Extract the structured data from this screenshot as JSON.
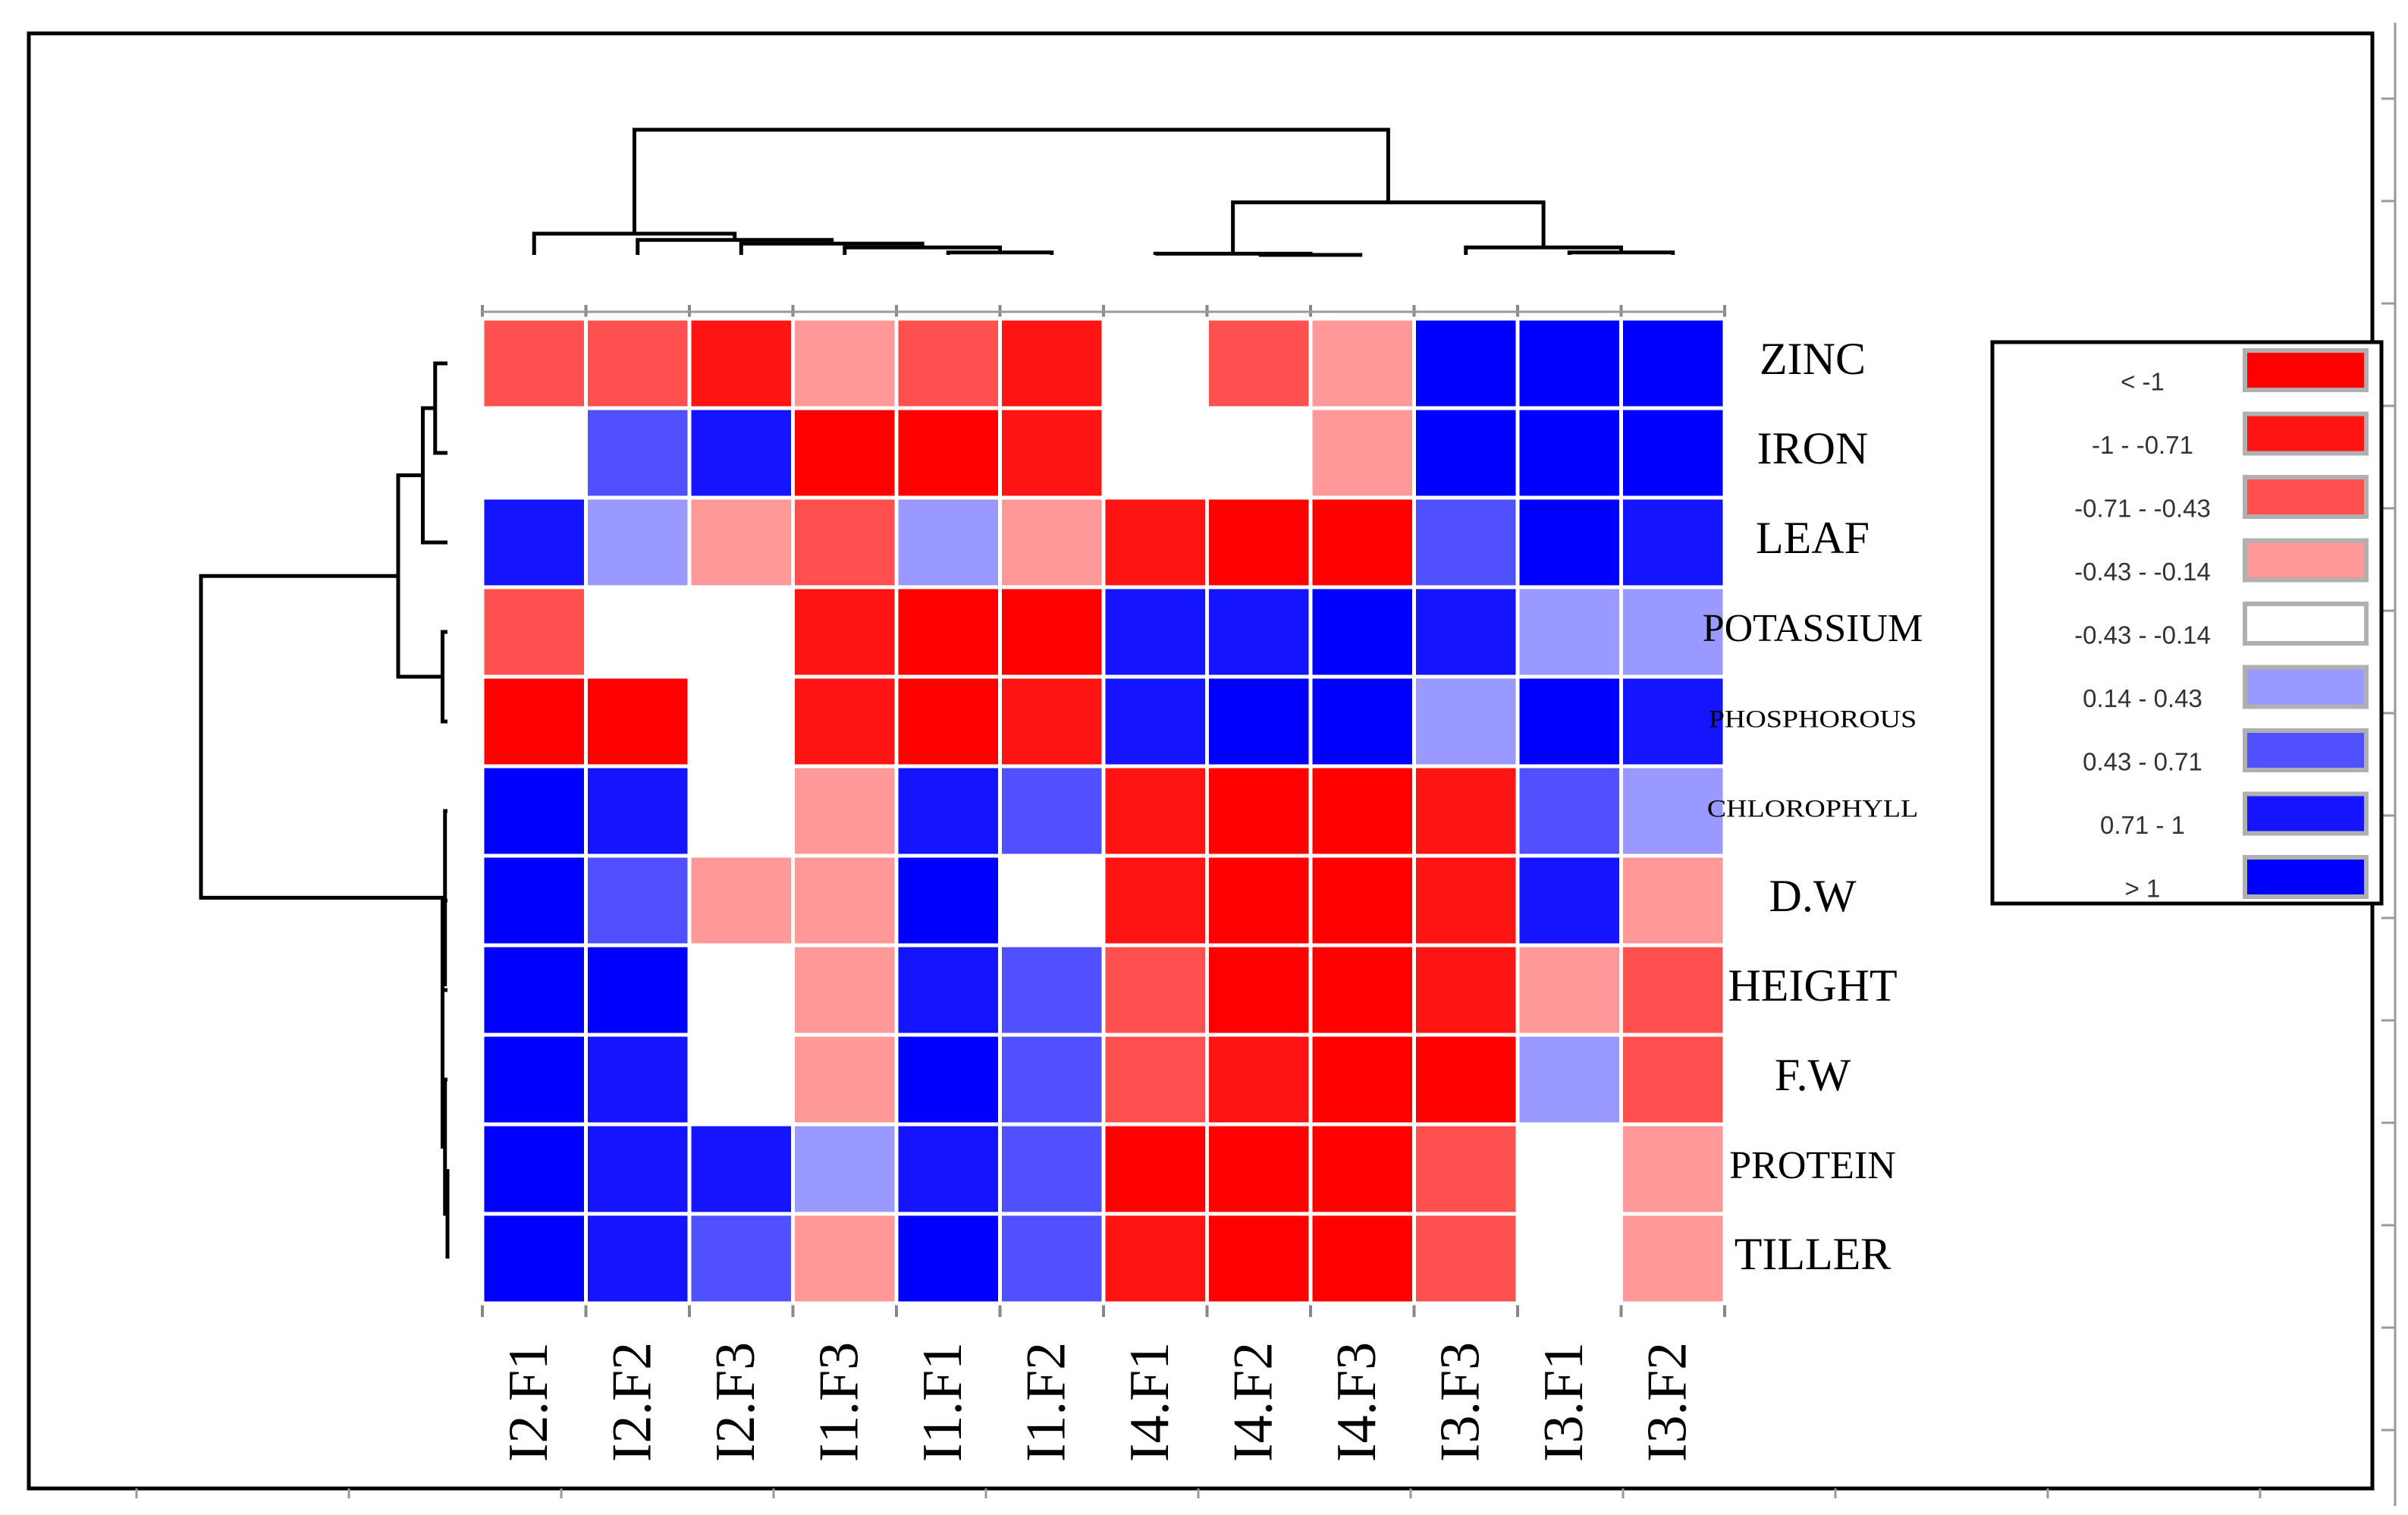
{
  "chart_data": {
    "type": "heatmap",
    "title": "",
    "rows": [
      "ZINC",
      "IRON",
      "LEAF",
      "POTASSIUM",
      "PHOSPHOROUS",
      "CHLOROPHYLL",
      "D.W",
      "HEIGHT",
      "F.W",
      "PROTEIN",
      "TILLER"
    ],
    "columns": [
      "I2.F1",
      "I2.F2",
      "I2.F3",
      "I1.F3",
      "I1.F1",
      "I1.F2",
      "I4.F1",
      "I4.F2",
      "I4.F3",
      "I3.F3",
      "I3.F1",
      "I3.F2"
    ],
    "values": [
      [
        2,
        2,
        1,
        3,
        2,
        1,
        4,
        2,
        3,
        8,
        8,
        8
      ],
      [
        4,
        6,
        7,
        0,
        0,
        1,
        4,
        4,
        3,
        8,
        8,
        8
      ],
      [
        7,
        5,
        3,
        2,
        5,
        3,
        1,
        0,
        0,
        6,
        8,
        7
      ],
      [
        2,
        4,
        4,
        1,
        0,
        0,
        7,
        7,
        8,
        7,
        5,
        5
      ],
      [
        0,
        0,
        4,
        1,
        0,
        1,
        7,
        8,
        8,
        5,
        8,
        7
      ],
      [
        8,
        7,
        4,
        3,
        7,
        6,
        1,
        0,
        0,
        1,
        6,
        5
      ],
      [
        8,
        6,
        3,
        3,
        8,
        4,
        1,
        0,
        0,
        1,
        7,
        3
      ],
      [
        8,
        8,
        4,
        3,
        7,
        6,
        2,
        0,
        0,
        1,
        3,
        2
      ],
      [
        8,
        7,
        4,
        3,
        8,
        6,
        2,
        1,
        0,
        0,
        5,
        2
      ],
      [
        8,
        7,
        7,
        5,
        7,
        6,
        0,
        0,
        0,
        2,
        4,
        3
      ],
      [
        8,
        7,
        6,
        3,
        8,
        6,
        1,
        0,
        0,
        2,
        4,
        3
      ]
    ],
    "legend": {
      "labels": [
        "< -1",
        "-1 - -0.71",
        "-0.71 - -0.43",
        "-0.43 - -0.14",
        "-0.43 - -0.14",
        "0.14 - 0.43",
        "0.43 - 0.71",
        "0.71 - 1",
        "> 1"
      ],
      "colors": [
        "#ff0000",
        "#ff1414",
        "#ff5050",
        "#ff9999",
        "#ffffff",
        "#9999ff",
        "#5050ff",
        "#1414ff",
        "#0000ff"
      ]
    },
    "col_dendrogram": [
      [
        "I1.F1",
        "I1.F2",
        0.02
      ],
      [
        "I1.F3",
        "I1.F1",
        0.06
      ],
      [
        "I2.F3",
        "I1.F3",
        0.09
      ],
      [
        "I2.F2",
        "I2.F3",
        0.12
      ],
      [
        "I2.F1",
        "I2.F2",
        0.17
      ],
      [
        "I4.F2",
        "I4.F3",
        0.0
      ],
      [
        "I4.F1",
        "I4.F2",
        0.01
      ],
      [
        "I3.F1",
        "I3.F2",
        0.02
      ],
      [
        "I3.F3",
        "I3.F1",
        0.06
      ],
      [
        "I4.F1",
        "I3.F3",
        0.42
      ],
      [
        "I2.F1",
        "I4.F1",
        1.0
      ]
    ],
    "row_dendrogram": [
      [
        "ZINC",
        "IRON",
        0.05
      ],
      [
        "ZINC",
        "LEAF",
        0.1
      ],
      [
        "POTASSIUM",
        "PHOSPHOROUS",
        0.02
      ],
      [
        "ZINC",
        "POTASSIUM",
        0.2
      ],
      [
        "PROTEIN",
        "TILLER",
        0.0
      ],
      [
        "F.W",
        "PROTEIN",
        0.01
      ],
      [
        "HEIGHT",
        "F.W",
        0.02
      ],
      [
        "D.W",
        "HEIGHT",
        0.02
      ],
      [
        "CHLOROPHYLL",
        "D.W",
        0.01
      ],
      [
        "ZINC",
        "CHLOROPHYLL",
        1.0
      ]
    ]
  }
}
